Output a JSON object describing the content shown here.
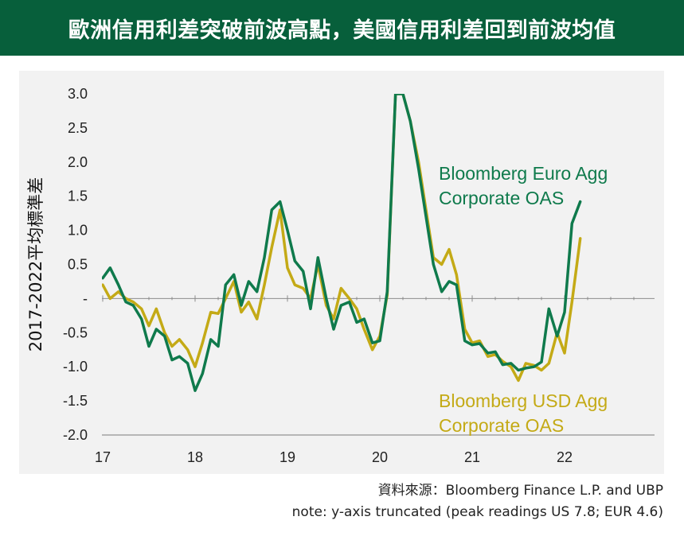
{
  "header": {
    "title": "歐洲信用利差突破前波高點，美國信用利差回到前波均值"
  },
  "colors": {
    "header_bg": "#075f3b",
    "euro_series": "#0f7a4c",
    "usd_series": "#c4aa16",
    "panel_bg": "#f2f2f2"
  },
  "chart_data": {
    "type": "line",
    "ylabel": "2017-2022平均標準差",
    "xlabel": "",
    "ylim": [
      -2.0,
      3.0
    ],
    "xlim": [
      2017.0,
      2023.0
    ],
    "y_ticks": [
      {
        "value": 3.0,
        "label": "3.0"
      },
      {
        "value": 2.5,
        "label": "2.5"
      },
      {
        "value": 2.0,
        "label": "2.0"
      },
      {
        "value": 1.5,
        "label": "1.5"
      },
      {
        "value": 1.0,
        "label": "1.0"
      },
      {
        "value": 0.5,
        "label": "0.5"
      },
      {
        "value": 0.0,
        "label": "-"
      },
      {
        "value": -0.5,
        "label": "-0.5"
      },
      {
        "value": -1.0,
        "label": "-1.0"
      },
      {
        "value": -1.5,
        "label": "-1.5"
      },
      {
        "value": -2.0,
        "label": "-2.0"
      }
    ],
    "x_ticks": [
      {
        "value": 2017,
        "label": "17"
      },
      {
        "value": 2018,
        "label": "18"
      },
      {
        "value": 2019,
        "label": "19"
      },
      {
        "value": 2020,
        "label": "20"
      },
      {
        "value": 2021,
        "label": "21"
      },
      {
        "value": 2022,
        "label": "22"
      }
    ],
    "grid": false,
    "series": [
      {
        "name": "Bloomberg Euro Agg Corporate OAS",
        "label_lines": [
          "Bloomberg Euro Agg",
          "Corporate OAS"
        ],
        "x": [
          2017.0,
          2017.08,
          2017.17,
          2017.25,
          2017.33,
          2017.42,
          2017.5,
          2017.58,
          2017.67,
          2017.75,
          2017.83,
          2017.92,
          2018.0,
          2018.08,
          2018.17,
          2018.25,
          2018.33,
          2018.42,
          2018.5,
          2018.58,
          2018.67,
          2018.75,
          2018.83,
          2018.92,
          2019.0,
          2019.08,
          2019.17,
          2019.25,
          2019.33,
          2019.42,
          2019.5,
          2019.58,
          2019.67,
          2019.75,
          2019.83,
          2019.92,
          2020.0,
          2020.08,
          2020.17,
          2020.25,
          2020.33,
          2020.42,
          2020.5,
          2020.58,
          2020.67,
          2020.75,
          2020.83,
          2020.92,
          2021.0,
          2021.08,
          2021.17,
          2021.25,
          2021.33,
          2021.42,
          2021.5,
          2021.58,
          2021.67,
          2021.75,
          2021.83,
          2021.92,
          2022.0,
          2022.08,
          2022.17
        ],
        "values": [
          0.3,
          0.45,
          0.2,
          -0.05,
          -0.1,
          -0.3,
          -0.7,
          -0.45,
          -0.55,
          -0.9,
          -0.85,
          -0.95,
          -1.35,
          -1.1,
          -0.6,
          -0.7,
          0.2,
          0.35,
          -0.1,
          0.25,
          0.1,
          0.6,
          1.3,
          1.42,
          1.0,
          0.55,
          0.4,
          -0.15,
          0.6,
          0.0,
          -0.45,
          -0.1,
          -0.05,
          -0.35,
          -0.3,
          -0.65,
          -0.62,
          0.1,
          3.0,
          3.0,
          2.6,
          1.9,
          1.2,
          0.5,
          0.1,
          0.25,
          0.2,
          -0.62,
          -0.68,
          -0.66,
          -0.8,
          -0.78,
          -0.97,
          -0.95,
          -1.05,
          -1.02,
          -1.0,
          -0.93,
          -0.15,
          -0.55,
          -0.2,
          1.1,
          1.42
        ]
      },
      {
        "name": "Bloomberg USD Agg Corporate OAS",
        "label_lines": [
          "Bloomberg USD Agg",
          "Corporate OAS"
        ],
        "x": [
          2017.0,
          2017.08,
          2017.17,
          2017.25,
          2017.33,
          2017.42,
          2017.5,
          2017.58,
          2017.67,
          2017.75,
          2017.83,
          2017.92,
          2018.0,
          2018.08,
          2018.17,
          2018.25,
          2018.33,
          2018.42,
          2018.5,
          2018.58,
          2018.67,
          2018.75,
          2018.83,
          2018.92,
          2019.0,
          2019.08,
          2019.17,
          2019.25,
          2019.33,
          2019.42,
          2019.5,
          2019.58,
          2019.67,
          2019.75,
          2019.83,
          2019.92,
          2020.0,
          2020.08,
          2020.17,
          2020.25,
          2020.33,
          2020.42,
          2020.5,
          2020.58,
          2020.67,
          2020.75,
          2020.83,
          2020.92,
          2021.0,
          2021.08,
          2021.17,
          2021.25,
          2021.33,
          2021.42,
          2021.5,
          2021.58,
          2021.67,
          2021.75,
          2021.83,
          2021.92,
          2022.0,
          2022.08,
          2022.17
        ],
        "values": [
          0.2,
          0.0,
          0.1,
          0.0,
          -0.05,
          -0.15,
          -0.4,
          -0.15,
          -0.5,
          -0.7,
          -0.6,
          -0.75,
          -1.0,
          -0.65,
          -0.2,
          -0.22,
          0.0,
          0.25,
          -0.2,
          -0.05,
          -0.3,
          0.2,
          0.75,
          1.3,
          0.45,
          0.2,
          0.15,
          0.0,
          0.5,
          -0.1,
          -0.3,
          0.15,
          0.0,
          -0.15,
          -0.45,
          -0.75,
          -0.55,
          0.05,
          3.0,
          3.0,
          2.6,
          2.0,
          1.3,
          0.6,
          0.5,
          0.72,
          0.35,
          -0.45,
          -0.65,
          -0.62,
          -0.85,
          -0.82,
          -0.92,
          -1.0,
          -1.2,
          -0.95,
          -0.98,
          -1.05,
          -0.95,
          -0.5,
          -0.8,
          -0.05,
          0.88
        ]
      }
    ]
  },
  "footer": {
    "source": "資料來源：Bloomberg Finance L.P. and UBP",
    "note": "note: y-axis truncated (peak readings US 7.8; EUR 4.6)"
  }
}
